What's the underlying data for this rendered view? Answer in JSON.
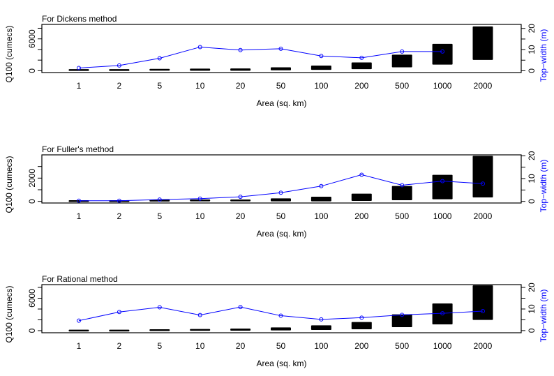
{
  "chart_data": [
    {
      "type": "bar",
      "title": "For Dickens method",
      "xlabel": "Area (sq. km)",
      "ylabel": "Q100 (cumecs)",
      "ylabel_right": "Top−width (m)",
      "categories": [
        "1",
        "2",
        "5",
        "10",
        "20",
        "50",
        "100",
        "200",
        "500",
        "1000",
        "2000"
      ],
      "ylim": [
        -340,
        8720
      ],
      "yticks": [
        0,
        2000,
        4000,
        6000,
        8000
      ],
      "ytick_labels": [
        "0",
        "6000"
      ],
      "ytick_label_values": [
        0,
        6000
      ],
      "ylim_right": [
        -0.85,
        21.9
      ],
      "yticks_right": [
        0,
        5,
        10,
        15,
        20
      ],
      "ytick_labels_right": [
        "0",
        "10",
        "20"
      ],
      "ytick_label_values_right": [
        0,
        10,
        20
      ],
      "ranges": [
        [
          0,
          300
        ],
        [
          0,
          300
        ],
        [
          50,
          350
        ],
        [
          0,
          400
        ],
        [
          0,
          430
        ],
        [
          80,
          640
        ],
        [
          170,
          980
        ],
        [
          300,
          1570
        ],
        [
          640,
          3020
        ],
        [
          1150,
          5060
        ],
        [
          2040,
          8340
        ]
      ],
      "line": [
        1.3,
        2.5,
        5.9,
        11.2,
        9.8,
        10.4,
        7.0,
        6.1,
        9.1,
        9.1,
        null
      ],
      "bar_color": "#000000",
      "line_color": "#0000ff"
    },
    {
      "type": "bar",
      "title": "For Fuller's method",
      "xlabel": "Area (sq. km)",
      "ylabel": "Q100 (cumecs)",
      "ylabel_right": "Top−width (m)",
      "categories": [
        "1",
        "2",
        "5",
        "10",
        "20",
        "50",
        "100",
        "200",
        "500",
        "1000",
        "2000"
      ],
      "ylim": [
        -140,
        4000
      ],
      "yticks": [
        0,
        1000,
        2000,
        3000
      ],
      "ytick_labels": [
        "0",
        "2000"
      ],
      "ytick_label_values": [
        0,
        2000
      ],
      "ylim_right": [
        -0.7,
        20.4
      ],
      "yticks_right": [
        0,
        5,
        10,
        15,
        20
      ],
      "ytick_labels_right": [
        "0",
        "10",
        "20"
      ],
      "ytick_label_values_right": [
        0,
        10,
        20
      ],
      "ranges": [
        [
          0,
          100
        ],
        [
          0,
          100
        ],
        [
          0,
          140
        ],
        [
          0,
          160
        ],
        [
          0,
          160
        ],
        [
          0,
          260
        ],
        [
          0,
          400
        ],
        [
          40,
          660
        ],
        [
          100,
          1320
        ],
        [
          180,
          2280
        ],
        [
          340,
          3920
        ]
      ],
      "line": [
        0.3,
        0.3,
        0.8,
        1.2,
        2.0,
        3.8,
        6.7,
        11.7,
        7.1,
        8.9,
        7.8
      ],
      "bar_color": "#000000",
      "line_color": "#0000ff"
    },
    {
      "type": "bar",
      "title": "For Rational method",
      "xlabel": "Area (sq. km)",
      "ylabel": "Q100 (cumecs)",
      "ylabel_right": "Top−width (m)",
      "categories": [
        "1",
        "2",
        "5",
        "10",
        "20",
        "50",
        "100",
        "200",
        "500",
        "1000",
        "2000"
      ],
      "ylim": [
        -390,
        8520
      ],
      "yticks": [
        0,
        2000,
        4000,
        6000,
        8000
      ],
      "ytick_labels": [
        "0",
        "6000"
      ],
      "ytick_label_values": [
        0,
        6000
      ],
      "ylim_right": [
        -1.0,
        21.3
      ],
      "yticks_right": [
        0,
        5,
        10,
        15,
        20
      ],
      "ytick_labels_right": [
        "0",
        "10",
        "20"
      ],
      "ytick_label_values_right": [
        0,
        10,
        20
      ],
      "ranges": [
        [
          0,
          170
        ],
        [
          0,
          170
        ],
        [
          0,
          260
        ],
        [
          0,
          300
        ],
        [
          0,
          390
        ],
        [
          40,
          600
        ],
        [
          130,
          990
        ],
        [
          260,
          1590
        ],
        [
          650,
          3010
        ],
        [
          1160,
          5030
        ],
        [
          1980,
          8390
        ]
      ],
      "line": [
        4.6,
        8.6,
        10.8,
        7.2,
        10.9,
        6.9,
        5.2,
        6.0,
        7.3,
        8.0,
        9.0
      ],
      "bar_color": "#000000",
      "line_color": "#0000ff"
    }
  ]
}
